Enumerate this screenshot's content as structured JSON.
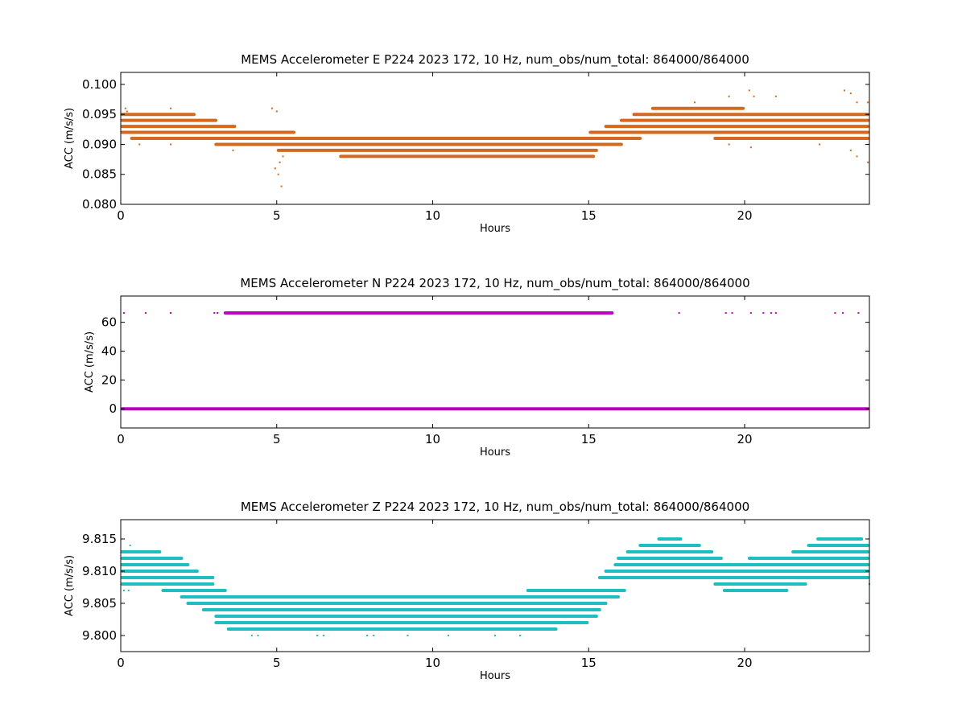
{
  "colors": {
    "east": "#d2691e",
    "north": "#bf00bf",
    "vertical": "#1ebebe"
  },
  "chart_data": [
    {
      "type": "scatter",
      "title": "MEMS Accelerometer E P224 2023 172, 10 Hz, num_obs/num_total: 864000/864000",
      "xlabel": "Hours",
      "ylabel": "ACC (m/s/s)",
      "xlim": [
        0,
        24
      ],
      "ylim": [
        0.08,
        0.102
      ],
      "xticks": [
        0,
        5,
        10,
        15,
        20
      ],
      "yticks": [
        0.08,
        0.085,
        0.09,
        0.095,
        0.1
      ],
      "ytick_labels": [
        "0.080",
        "0.085",
        "0.090",
        "0.095",
        "0.100"
      ],
      "grid": false,
      "series": [
        {
          "color_key": "east",
          "bands": [
            {
              "y": 0.096,
              "x": [
                17.0,
                20.0
              ]
            },
            {
              "y": 0.095,
              "x": [
                0.0,
                2.4
              ]
            },
            {
              "y": 0.095,
              "x": [
                16.4,
                24.0
              ]
            },
            {
              "y": 0.094,
              "x": [
                0.0,
                3.1
              ]
            },
            {
              "y": 0.094,
              "x": [
                16.0,
                24.0
              ]
            },
            {
              "y": 0.093,
              "x": [
                0.0,
                3.7
              ]
            },
            {
              "y": 0.093,
              "x": [
                15.5,
                24.0
              ]
            },
            {
              "y": 0.092,
              "x": [
                0.0,
                5.6
              ]
            },
            {
              "y": 0.092,
              "x": [
                15.0,
                24.0
              ]
            },
            {
              "y": 0.091,
              "x": [
                0.3,
                16.7
              ]
            },
            {
              "y": 0.091,
              "x": [
                19.0,
                24.0
              ]
            },
            {
              "y": 0.09,
              "x": [
                3.0,
                16.1
              ]
            },
            {
              "y": 0.089,
              "x": [
                5.0,
                15.3
              ]
            },
            {
              "y": 0.088,
              "x": [
                7.0,
                15.2
              ]
            }
          ],
          "points": [
            [
              0.15,
              0.096
            ],
            [
              0.2,
              0.0955
            ],
            [
              4.85,
              0.096
            ],
            [
              5.0,
              0.0955
            ],
            [
              5.1,
              0.087
            ],
            [
              4.95,
              0.086
            ],
            [
              5.05,
              0.085
            ],
            [
              5.15,
              0.083
            ],
            [
              5.2,
              0.088
            ],
            [
              1.6,
              0.096
            ],
            [
              0.6,
              0.09
            ],
            [
              1.6,
              0.09
            ],
            [
              3.6,
              0.089
            ],
            [
              18.4,
              0.097
            ],
            [
              19.5,
              0.098
            ],
            [
              20.15,
              0.099
            ],
            [
              20.3,
              0.098
            ],
            [
              21.0,
              0.098
            ],
            [
              23.2,
              0.099
            ],
            [
              23.4,
              0.0985
            ],
            [
              23.6,
              0.097
            ],
            [
              23.95,
              0.097
            ],
            [
              23.4,
              0.089
            ],
            [
              23.6,
              0.088
            ],
            [
              23.95,
              0.087
            ],
            [
              19.5,
              0.09
            ],
            [
              20.2,
              0.0895
            ],
            [
              22.4,
              0.09
            ],
            [
              21.5,
              0.091
            ]
          ]
        }
      ]
    },
    {
      "type": "scatter",
      "title": "MEMS Accelerometer N P224 2023 172, 10 Hz, num_obs/num_total: 864000/864000",
      "xlabel": "Hours",
      "ylabel": "ACC (m/s/s)",
      "xlim": [
        0,
        24
      ],
      "ylim": [
        -13.3,
        78.2
      ],
      "xticks": [
        0,
        5,
        10,
        15,
        20
      ],
      "yticks": [
        0,
        20,
        40,
        60
      ],
      "ytick_labels": [
        "0",
        "20",
        "40",
        "60"
      ],
      "grid": false,
      "series": [
        {
          "color_key": "north",
          "bands": [
            {
              "y": 0,
              "x": [
                0.0,
                24.0
              ]
            },
            {
              "y": 66.5,
              "x": [
                3.3,
                15.8
              ]
            }
          ],
          "points": [
            [
              0.1,
              66.5
            ],
            [
              0.8,
              66.5
            ],
            [
              1.6,
              66.5
            ],
            [
              3.0,
              66.5
            ],
            [
              3.1,
              66.5
            ],
            [
              17.9,
              66.5
            ],
            [
              19.4,
              66.5
            ],
            [
              19.6,
              66.5
            ],
            [
              20.2,
              66.5
            ],
            [
              20.6,
              66.5
            ],
            [
              20.85,
              66.5
            ],
            [
              21.0,
              66.5
            ],
            [
              22.9,
              66.5
            ],
            [
              23.15,
              66.5
            ],
            [
              23.65,
              66.5
            ]
          ]
        }
      ]
    },
    {
      "type": "scatter",
      "title": "MEMS Accelerometer Z P224 2023 172, 10 Hz, num_obs/num_total: 864000/864000",
      "xlabel": "Hours",
      "ylabel": "ACC (m/s/s)",
      "xlim": [
        0,
        24
      ],
      "ylim": [
        9.7975,
        9.818
      ],
      "xticks": [
        0,
        5,
        10,
        15,
        20
      ],
      "yticks": [
        9.8,
        9.805,
        9.81,
        9.815
      ],
      "ytick_labels": [
        "9.800",
        "9.805",
        "9.810",
        "9.815"
      ],
      "grid": false,
      "series": [
        {
          "color_key": "vertical",
          "bands": [
            {
              "y": 9.815,
              "x": [
                17.2,
                18.0
              ]
            },
            {
              "y": 9.815,
              "x": [
                22.3,
                23.8
              ]
            },
            {
              "y": 9.814,
              "x": [
                16.6,
                18.6
              ]
            },
            {
              "y": 9.814,
              "x": [
                22.0,
                24.0
              ]
            },
            {
              "y": 9.813,
              "x": [
                0.0,
                1.3
              ]
            },
            {
              "y": 9.813,
              "x": [
                16.2,
                19.0
              ]
            },
            {
              "y": 9.813,
              "x": [
                21.5,
                24.0
              ]
            },
            {
              "y": 9.812,
              "x": [
                0.0,
                2.0
              ]
            },
            {
              "y": 9.812,
              "x": [
                15.9,
                19.3
              ]
            },
            {
              "y": 9.812,
              "x": [
                20.1,
                24.0
              ]
            },
            {
              "y": 9.811,
              "x": [
                0.0,
                2.2
              ]
            },
            {
              "y": 9.811,
              "x": [
                15.8,
                24.0
              ]
            },
            {
              "y": 9.81,
              "x": [
                0.0,
                2.5
              ]
            },
            {
              "y": 9.81,
              "x": [
                15.5,
                24.0
              ]
            },
            {
              "y": 9.809,
              "x": [
                0.0,
                3.0
              ]
            },
            {
              "y": 9.809,
              "x": [
                15.3,
                24.0
              ]
            },
            {
              "y": 9.808,
              "x": [
                0.0,
                3.0
              ]
            },
            {
              "y": 9.808,
              "x": [
                19.0,
                22.0
              ]
            },
            {
              "y": 9.807,
              "x": [
                1.3,
                3.4
              ]
            },
            {
              "y": 9.807,
              "x": [
                13.0,
                16.2
              ]
            },
            {
              "y": 9.807,
              "x": [
                19.3,
                21.4
              ]
            },
            {
              "y": 9.806,
              "x": [
                1.9,
                16.0
              ]
            },
            {
              "y": 9.805,
              "x": [
                2.1,
                15.6
              ]
            },
            {
              "y": 9.804,
              "x": [
                2.6,
                15.4
              ]
            },
            {
              "y": 9.803,
              "x": [
                3.0,
                15.3
              ]
            },
            {
              "y": 9.802,
              "x": [
                3.0,
                15.0
              ]
            },
            {
              "y": 9.801,
              "x": [
                3.4,
                14.0
              ]
            }
          ],
          "points": [
            [
              0.3,
              9.814
            ],
            [
              0.1,
              9.807
            ],
            [
              0.25,
              9.807
            ],
            [
              4.2,
              9.8
            ],
            [
              4.4,
              9.8
            ],
            [
              6.3,
              9.8
            ],
            [
              6.5,
              9.8
            ],
            [
              7.9,
              9.8
            ],
            [
              8.1,
              9.8
            ],
            [
              9.2,
              9.8
            ],
            [
              10.5,
              9.8
            ],
            [
              12.0,
              9.8
            ],
            [
              12.8,
              9.8
            ],
            [
              24.0,
              9.808
            ]
          ]
        }
      ]
    }
  ]
}
